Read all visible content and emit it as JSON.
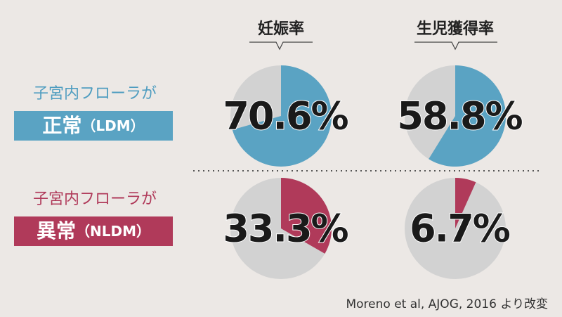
{
  "column_headers": [
    "妊娠率",
    "生児獲得率"
  ],
  "rows": [
    {
      "label": "子宮内フローラが",
      "status": "正常",
      "abbr": "（LDM）"
    },
    {
      "label": "子宮内フローラが",
      "status": "異常",
      "abbr": "（NLDM）"
    }
  ],
  "chart_data": [
    {
      "type": "pie",
      "values": [
        70.6
      ],
      "value_labels": [
        "70.6%"
      ],
      "color": "#5aa3c3",
      "rest_color": "#d2d2d2"
    },
    {
      "type": "pie",
      "values": [
        58.8
      ],
      "value_labels": [
        "58.8%"
      ],
      "color": "#5aa3c3",
      "rest_color": "#d2d2d2"
    },
    {
      "type": "pie",
      "values": [
        33.3
      ],
      "value_labels": [
        "33.3%"
      ],
      "color": "#b03a5a",
      "rest_color": "#d2d2d2"
    },
    {
      "type": "pie",
      "values": [
        6.7
      ],
      "value_labels": [
        "6.7%"
      ],
      "color": "#b03a5a",
      "rest_color": "#d2d2d2"
    }
  ],
  "source": "Moreno et al, AJOG, 2016 より改変"
}
